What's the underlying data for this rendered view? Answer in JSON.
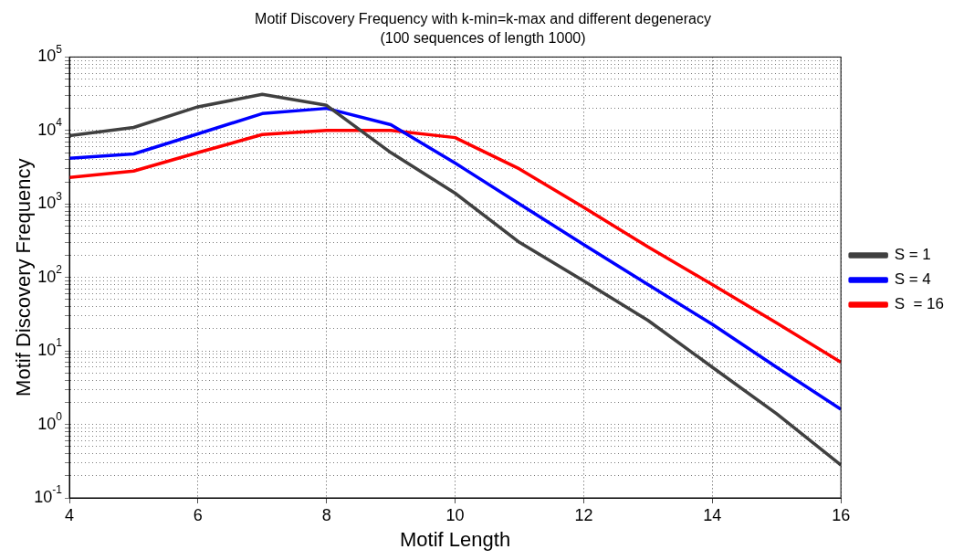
{
  "chart_data": {
    "type": "line",
    "title": "Motif Discovery Frequency with k-min=k-max and different degeneracy",
    "subtitle": "(100 sequences of length 1000)",
    "xlabel": "Motif Length",
    "ylabel": "Motif Discovery Frequency",
    "x": [
      4,
      5,
      6,
      7,
      8,
      9,
      10,
      11,
      12,
      13,
      14,
      15,
      16
    ],
    "series": [
      {
        "name": "S = 1",
        "color": "#404040",
        "values": [
          8500,
          11000,
          21000,
          31000,
          22000,
          5000,
          1400,
          300,
          90,
          26,
          6,
          1.4,
          0.28
        ]
      },
      {
        "name": "S = 4",
        "color": "#0000ff",
        "values": [
          4200,
          4800,
          9000,
          17000,
          20000,
          12000,
          3600,
          1000,
          280,
          80,
          23,
          6,
          1.6
        ]
      },
      {
        "name": "S  = 16",
        "color": "#ff0000",
        "values": [
          2300,
          2800,
          5000,
          8800,
          10000,
          10000,
          8000,
          3000,
          900,
          260,
          80,
          24,
          7
        ]
      }
    ],
    "log": "y",
    "xlim": [
      4,
      16
    ],
    "xticks": [
      4,
      6,
      8,
      10,
      12,
      14,
      16
    ],
    "ylim": [
      0.1,
      100000
    ],
    "yticks": [
      {
        "value": 0.1,
        "label": "10$^{-1}$"
      },
      {
        "value": 0.2,
        "label": null
      },
      {
        "value": 0.3,
        "label": null
      },
      {
        "value": 0.4,
        "label": null
      },
      {
        "value": 0.5,
        "label": null
      },
      {
        "value": 0.6,
        "label": null
      },
      {
        "value": 0.7,
        "label": null
      },
      {
        "value": 0.8,
        "label": null
      },
      {
        "value": 0.9,
        "label": null
      },
      {
        "value": 1,
        "label": "10$^{0}$"
      },
      {
        "value": 2,
        "label": null
      },
      {
        "value": 3,
        "label": null
      },
      {
        "value": 4,
        "label": null
      },
      {
        "value": 5,
        "label": null
      },
      {
        "value": 6,
        "label": null
      },
      {
        "value": 7,
        "label": null
      },
      {
        "value": 8,
        "label": null
      },
      {
        "value": 9,
        "label": null
      },
      {
        "value": 10,
        "label": "10$^{1}$"
      },
      {
        "value": 20,
        "label": null
      },
      {
        "value": 30,
        "label": null
      },
      {
        "value": 40,
        "label": null
      },
      {
        "value": 50,
        "label": null
      },
      {
        "value": 60,
        "label": null
      },
      {
        "value": 70,
        "label": null
      },
      {
        "value": 80,
        "label": null
      },
      {
        "value": 90,
        "label": null
      },
      {
        "value": 100,
        "label": "10$^{2}$"
      },
      {
        "value": 200,
        "label": null
      },
      {
        "value": 300,
        "label": null
      },
      {
        "value": 400,
        "label": null
      },
      {
        "value": 500,
        "label": null
      },
      {
        "value": 600,
        "label": null
      },
      {
        "value": 700,
        "label": null
      },
      {
        "value": 800,
        "label": null
      },
      {
        "value": 900,
        "label": null
      },
      {
        "value": 1000,
        "label": "10$^{3}$"
      },
      {
        "value": 2000,
        "label": null
      },
      {
        "value": 3000,
        "label": null
      },
      {
        "value": 4000,
        "label": null
      },
      {
        "value": 5000,
        "label": null
      },
      {
        "value": 6000,
        "label": null
      },
      {
        "value": 7000,
        "label": null
      },
      {
        "value": 8000,
        "label": null
      },
      {
        "value": 9000,
        "label": null
      },
      {
        "value": 10000,
        "label": "10$^{4}$"
      },
      {
        "value": 20000,
        "label": null
      },
      {
        "value": 30000,
        "label": null
      },
      {
        "value": 40000,
        "label": null
      },
      {
        "value": 50000,
        "label": null
      },
      {
        "value": 60000,
        "label": null
      },
      {
        "value": 70000,
        "label": null
      },
      {
        "value": 80000,
        "label": null
      },
      {
        "value": 90000,
        "label": null
      },
      {
        "value": 100000,
        "label": "10$^{5}$"
      }
    ],
    "grid": true,
    "legend": "right",
    "marker": "none",
    "line_style": "solid"
  }
}
